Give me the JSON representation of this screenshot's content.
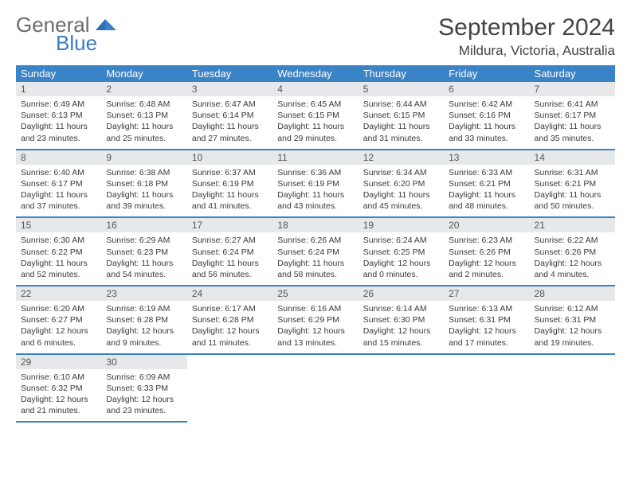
{
  "brand": {
    "word1": "General",
    "word2": "Blue"
  },
  "title": "September 2024",
  "location": "Mildura, Victoria, Australia",
  "colors": {
    "header_bg": "#3a83c6",
    "header_text": "#ffffff",
    "daynum_bg": "#e7e8e9",
    "rule": "#3a83c6",
    "logo_gray": "#6b6b6b",
    "logo_blue": "#3a7cc2"
  },
  "day_headers": [
    "Sunday",
    "Monday",
    "Tuesday",
    "Wednesday",
    "Thursday",
    "Friday",
    "Saturday"
  ],
  "weeks": [
    [
      {
        "n": "1",
        "sr": "6:49 AM",
        "ss": "6:13 PM",
        "dl": "11 hours and 23 minutes."
      },
      {
        "n": "2",
        "sr": "6:48 AM",
        "ss": "6:13 PM",
        "dl": "11 hours and 25 minutes."
      },
      {
        "n": "3",
        "sr": "6:47 AM",
        "ss": "6:14 PM",
        "dl": "11 hours and 27 minutes."
      },
      {
        "n": "4",
        "sr": "6:45 AM",
        "ss": "6:15 PM",
        "dl": "11 hours and 29 minutes."
      },
      {
        "n": "5",
        "sr": "6:44 AM",
        "ss": "6:15 PM",
        "dl": "11 hours and 31 minutes."
      },
      {
        "n": "6",
        "sr": "6:42 AM",
        "ss": "6:16 PM",
        "dl": "11 hours and 33 minutes."
      },
      {
        "n": "7",
        "sr": "6:41 AM",
        "ss": "6:17 PM",
        "dl": "11 hours and 35 minutes."
      }
    ],
    [
      {
        "n": "8",
        "sr": "6:40 AM",
        "ss": "6:17 PM",
        "dl": "11 hours and 37 minutes."
      },
      {
        "n": "9",
        "sr": "6:38 AM",
        "ss": "6:18 PM",
        "dl": "11 hours and 39 minutes."
      },
      {
        "n": "10",
        "sr": "6:37 AM",
        "ss": "6:19 PM",
        "dl": "11 hours and 41 minutes."
      },
      {
        "n": "11",
        "sr": "6:36 AM",
        "ss": "6:19 PM",
        "dl": "11 hours and 43 minutes."
      },
      {
        "n": "12",
        "sr": "6:34 AM",
        "ss": "6:20 PM",
        "dl": "11 hours and 45 minutes."
      },
      {
        "n": "13",
        "sr": "6:33 AM",
        "ss": "6:21 PM",
        "dl": "11 hours and 48 minutes."
      },
      {
        "n": "14",
        "sr": "6:31 AM",
        "ss": "6:21 PM",
        "dl": "11 hours and 50 minutes."
      }
    ],
    [
      {
        "n": "15",
        "sr": "6:30 AM",
        "ss": "6:22 PM",
        "dl": "11 hours and 52 minutes."
      },
      {
        "n": "16",
        "sr": "6:29 AM",
        "ss": "6:23 PM",
        "dl": "11 hours and 54 minutes."
      },
      {
        "n": "17",
        "sr": "6:27 AM",
        "ss": "6:24 PM",
        "dl": "11 hours and 56 minutes."
      },
      {
        "n": "18",
        "sr": "6:26 AM",
        "ss": "6:24 PM",
        "dl": "11 hours and 58 minutes."
      },
      {
        "n": "19",
        "sr": "6:24 AM",
        "ss": "6:25 PM",
        "dl": "12 hours and 0 minutes."
      },
      {
        "n": "20",
        "sr": "6:23 AM",
        "ss": "6:26 PM",
        "dl": "12 hours and 2 minutes."
      },
      {
        "n": "21",
        "sr": "6:22 AM",
        "ss": "6:26 PM",
        "dl": "12 hours and 4 minutes."
      }
    ],
    [
      {
        "n": "22",
        "sr": "6:20 AM",
        "ss": "6:27 PM",
        "dl": "12 hours and 6 minutes."
      },
      {
        "n": "23",
        "sr": "6:19 AM",
        "ss": "6:28 PM",
        "dl": "12 hours and 9 minutes."
      },
      {
        "n": "24",
        "sr": "6:17 AM",
        "ss": "6:28 PM",
        "dl": "12 hours and 11 minutes."
      },
      {
        "n": "25",
        "sr": "6:16 AM",
        "ss": "6:29 PM",
        "dl": "12 hours and 13 minutes."
      },
      {
        "n": "26",
        "sr": "6:14 AM",
        "ss": "6:30 PM",
        "dl": "12 hours and 15 minutes."
      },
      {
        "n": "27",
        "sr": "6:13 AM",
        "ss": "6:31 PM",
        "dl": "12 hours and 17 minutes."
      },
      {
        "n": "28",
        "sr": "6:12 AM",
        "ss": "6:31 PM",
        "dl": "12 hours and 19 minutes."
      }
    ],
    [
      {
        "n": "29",
        "sr": "6:10 AM",
        "ss": "6:32 PM",
        "dl": "12 hours and 21 minutes."
      },
      {
        "n": "30",
        "sr": "6:09 AM",
        "ss": "6:33 PM",
        "dl": "12 hours and 23 minutes."
      },
      null,
      null,
      null,
      null,
      null
    ]
  ],
  "labels": {
    "sunrise": "Sunrise:",
    "sunset": "Sunset:",
    "daylight": "Daylight:"
  }
}
